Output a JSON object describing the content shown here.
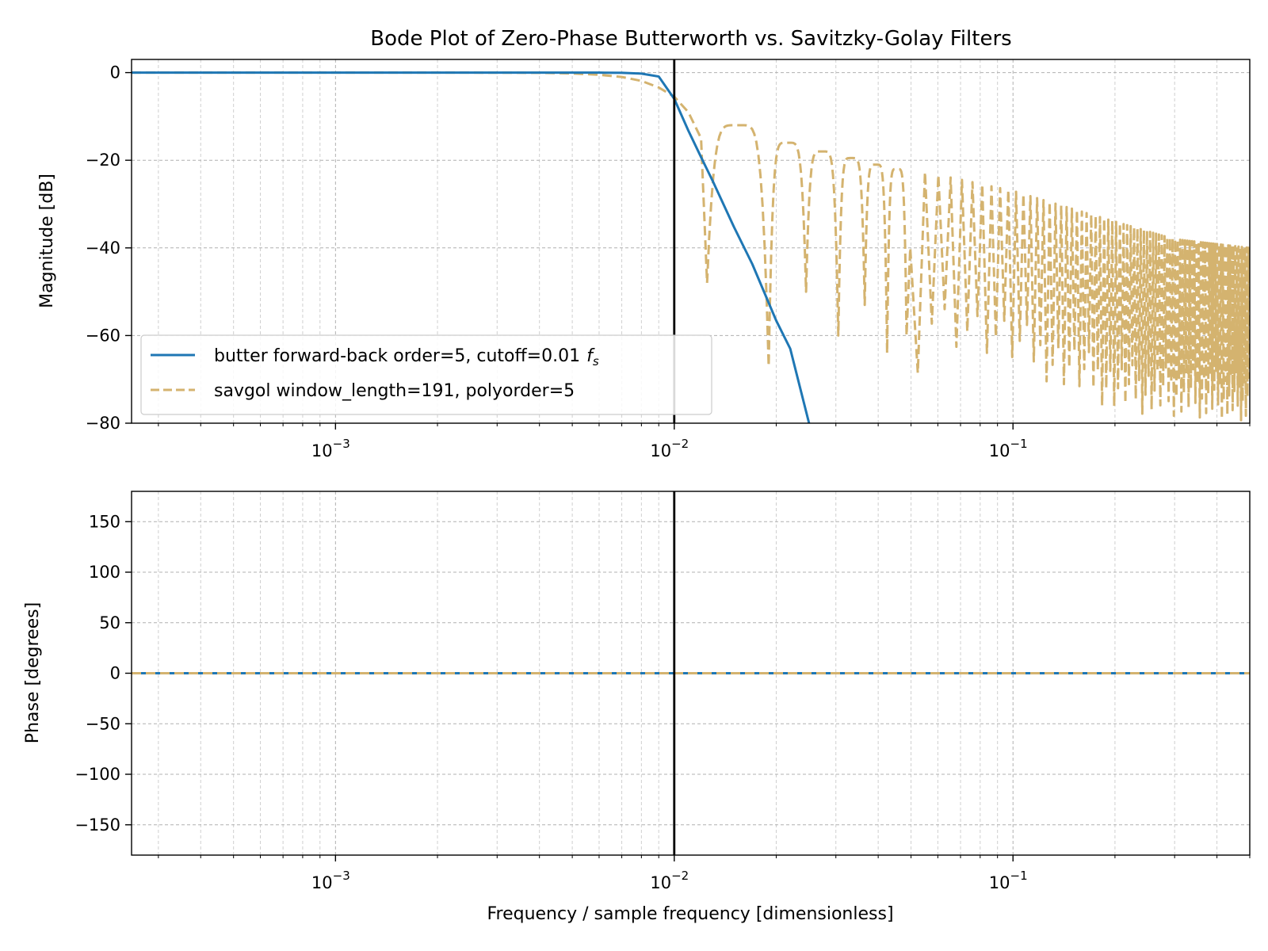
{
  "chart_data": [
    {
      "type": "line",
      "title": "Bode Plot of Zero-Phase Butterworth vs. Savitzky-Golay Filters",
      "ylabel": "Magnitude [dB]",
      "xlabel": "",
      "xscale": "log",
      "xlim": [
        0.00025,
        0.5
      ],
      "ylim": [
        -80,
        3
      ],
      "yticks": [
        0,
        -20,
        -40,
        -60,
        -80
      ],
      "ytick_labels": [
        "0",
        "−20",
        "−40",
        "−60",
        "−80"
      ],
      "xtick_labels": [
        "10",
        "10",
        "10"
      ],
      "xtick_exponents": [
        "−3",
        "−2",
        "−1"
      ],
      "grid": "on",
      "legend_position": "lower-left",
      "vline_x": 0.01,
      "legend": {
        "butter_label": "butter forward-back order=5, cutoff=0.01",
        "butter_label_math": "f",
        "butter_label_sub": "s",
        "savgol_label": "savgol window_length=191, polyorder=5"
      },
      "series": [
        {
          "name": "butter forward-back order=5, cutoff=0.01 f_s",
          "color": "#1f77b4",
          "style": "solid",
          "x": [
            0.00025,
            0.001,
            0.003,
            0.005,
            0.006,
            0.007,
            0.008,
            0.009,
            0.01,
            0.011,
            0.012,
            0.013,
            0.015,
            0.017,
            0.02,
            0.022,
            0.025
          ],
          "y": [
            0,
            0,
            0,
            -0.002,
            -0.01,
            -0.05,
            -0.23,
            -0.9,
            -6.0,
            -13.2,
            -19.3,
            -24.8,
            -35.2,
            -43.7,
            -56.6,
            -63.0,
            -80.0
          ]
        },
        {
          "name": "savgol window_length=191, polyorder=5",
          "color": "#d4b36f",
          "style": "dashed",
          "x": [
            0.00025,
            0.001,
            0.003,
            0.004,
            0.005,
            0.006,
            0.007,
            0.008,
            0.009,
            0.01,
            0.011,
            0.012,
            0.0125
          ],
          "y": [
            0,
            0,
            -0.02,
            -0.06,
            -0.2,
            -0.5,
            -1.0,
            -1.9,
            -3.4,
            -5.5,
            -9.0,
            -15.0,
            -48.0
          ],
          "lobes": [
            {
              "z1": 0.0125,
              "peak": -12,
              "z2": 0.019,
              "min1": -48,
              "min2": -67
            },
            {
              "z1": 0.019,
              "peak": -16,
              "z2": 0.0245,
              "min1": -67,
              "min2": -50
            },
            {
              "z1": 0.0245,
              "peak": -18,
              "z2": 0.0305,
              "min1": -50,
              "min2": -60
            },
            {
              "z1": 0.0305,
              "peak": -19.5,
              "z2": 0.0365,
              "min1": -60,
              "min2": -53
            },
            {
              "z1": 0.0365,
              "peak": -21,
              "z2": 0.0425,
              "min1": -53,
              "min2": -64
            },
            {
              "z1": 0.0425,
              "peak": -22,
              "z2": 0.0485,
              "min1": -64,
              "min2": -60
            }
          ],
          "envelope_top": [
            [
              0.05,
              -22
            ],
            [
              0.1,
              -27
            ],
            [
              0.2,
              -34
            ],
            [
              0.3,
              -38
            ],
            [
              0.5,
              -40
            ]
          ],
          "envelope_bottom": [
            [
              0.05,
              -60
            ],
            [
              0.1,
              -68
            ],
            [
              0.2,
              -78
            ],
            [
              0.5,
              -80
            ]
          ]
        }
      ]
    },
    {
      "type": "line",
      "title": "",
      "ylabel": "Phase [degrees]",
      "xlabel": "Frequency / sample frequency [dimensionless]",
      "xscale": "log",
      "xlim": [
        0.00025,
        0.5
      ],
      "ylim": [
        -180,
        180
      ],
      "yticks": [
        150,
        100,
        50,
        0,
        -50,
        -100,
        -150
      ],
      "ytick_labels": [
        "150",
        "100",
        "50",
        "0",
        "−50",
        "−100",
        "−150"
      ],
      "xtick_labels": [
        "10",
        "10",
        "10"
      ],
      "xtick_exponents": [
        "−3",
        "−2",
        "−1"
      ],
      "grid": "on",
      "vline_x": 0.01,
      "series": [
        {
          "name": "butter forward-back order=5, cutoff=0.01 f_s",
          "color": "#1f77b4",
          "style": "solid",
          "x": [
            0.00025,
            0.5
          ],
          "y": [
            0,
            0
          ]
        },
        {
          "name": "savgol window_length=191, polyorder=5",
          "color": "#d4b36f",
          "style": "dashed",
          "x": [
            0.00025,
            0.5
          ],
          "y": [
            0,
            0
          ]
        }
      ]
    }
  ]
}
